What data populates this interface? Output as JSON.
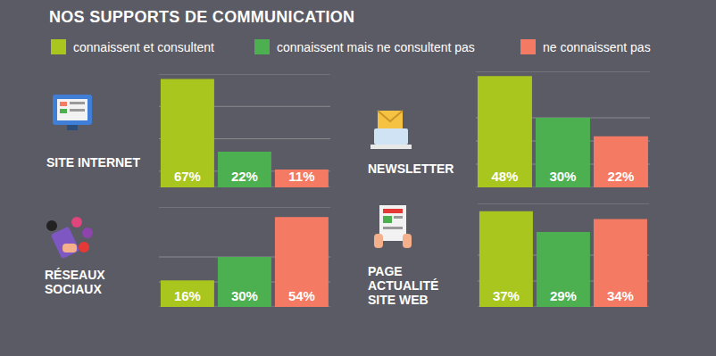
{
  "title": "NOS SUPPORTS DE COMMUNICATION",
  "legend": "top-left",
  "chart_data": [
    {
      "type": "bar",
      "title": "SITE INTERNET",
      "categories": [
        "connaissent et consultent",
        "connaissent mais ne consultent pas",
        "ne connaissent pas"
      ],
      "values": [
        67,
        22,
        11
      ],
      "value_labels": [
        "67%",
        "22%",
        "11%"
      ],
      "colors": [
        "#a8c61e",
        "#4caf50",
        "#f47a63"
      ],
      "data_labels": true,
      "ylim": [
        0,
        70
      ],
      "yticks": [
        0,
        10,
        20,
        30,
        40,
        50,
        60,
        70
      ],
      "grid": true,
      "tick_labels": false
    },
    {
      "type": "bar",
      "title": "NEWSLETTER",
      "categories": [
        "connaissent et consultent",
        "connaissent mais ne consultent pas",
        "ne connaissent pas"
      ],
      "values": [
        48,
        30,
        22
      ],
      "value_labels": [
        "48%",
        "30%",
        "22%"
      ],
      "colors": [
        "#a8c61e",
        "#4caf50",
        "#f47a63"
      ],
      "data_labels": true,
      "ylim": [
        0,
        50
      ],
      "yticks": [
        0,
        10,
        20,
        30,
        40,
        50
      ],
      "grid": true,
      "tick_labels": false
    },
    {
      "type": "bar",
      "title": "RÉSEAUX\nSOCIAUX",
      "categories": [
        "connaissent et consultent",
        "connaissent mais ne consultent pas",
        "ne connaissent pas"
      ],
      "values": [
        16,
        30,
        54
      ],
      "value_labels": [
        "16%",
        "30%",
        "54%"
      ],
      "colors": [
        "#a8c61e",
        "#4caf50",
        "#f47a63"
      ],
      "data_labels": true,
      "ylim": [
        0,
        60
      ],
      "yticks": [
        0,
        15,
        30,
        45,
        60
      ],
      "grid": true,
      "tick_labels": false
    },
    {
      "type": "bar",
      "title": "PAGE\nACTUALITÉ\nSITE WEB",
      "categories": [
        "connaissent et consultent",
        "connaissent mais ne consultent pas",
        "ne connaissent pas"
      ],
      "values": [
        37,
        29,
        34
      ],
      "value_labels": [
        "37%",
        "29%",
        "34%"
      ],
      "colors": [
        "#a8c61e",
        "#4caf50",
        "#f47a63"
      ],
      "data_labels": true,
      "ylim": [
        0,
        40
      ],
      "yticks": [
        0,
        10,
        20,
        30,
        40
      ],
      "grid": true,
      "tick_labels": false
    }
  ]
}
